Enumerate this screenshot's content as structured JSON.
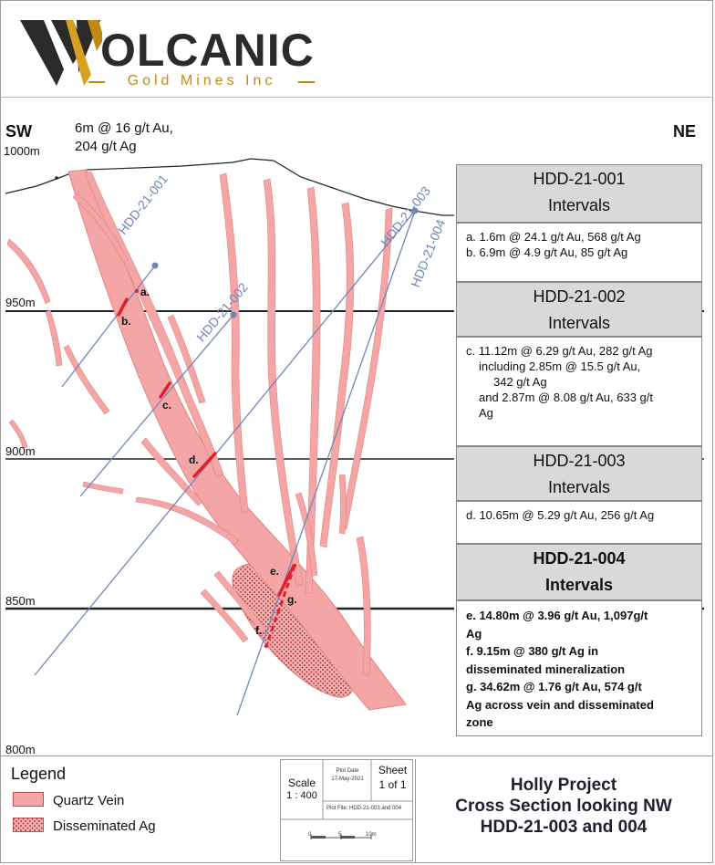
{
  "logo": {
    "wordmark": "OLCANIC",
    "subtitle": "Gold Mines Inc"
  },
  "section": {
    "left_direction": "SW",
    "right_direction": "NE",
    "top_note_line1": "6m @ 16 g/t Au,",
    "top_note_line2": "204 g/t Ag",
    "elevations": [
      "1000m",
      "950m",
      "900m",
      "850m",
      "800m"
    ],
    "holes": [
      "HDD-21-001",
      "HDD-21-002",
      "HDD-21-003",
      "HDD-21-004"
    ],
    "intercept_labels": [
      "a.",
      "b.",
      "c.",
      "d.",
      "e.",
      "g.",
      "f."
    ]
  },
  "panels": [
    {
      "title_line1": "HDD-21-001",
      "title_line2": "Intervals",
      "lines": [
        "a.  1.6m @ 24.1 g/t Au, 568 g/t Ag",
        "b.  6.9m @ 4.9 g/t Au, 85 g/t Ag"
      ]
    },
    {
      "title_line1": "HDD-21-002",
      "title_line2": "Intervals",
      "lines": [
        "c.  11.12m @ 6.29 g/t Au, 282 g/t Ag",
        "including 2.85m @ 15.5 g/t Au,",
        "342 g/t Ag",
        "and 2.87m @ 8.08 g/t Au, 633 g/t",
        "Ag"
      ]
    },
    {
      "title_line1": "HDD-21-003",
      "title_line2": "Intervals",
      "lines": [
        "d.  10.65m @ 5.29 g/t Au, 256 g/t Ag"
      ]
    },
    {
      "title_line1": "HDD-21-004",
      "title_line2": "Intervals",
      "lines": [
        "e.  14.80m @ 3.96 g/t Au, 1,097g/t",
        "Ag",
        "f.   9.15m @ 380 g/t Ag in",
        "disseminated mineralization",
        "g.   34.62m @ 1.76 g/t Au, 574 g/t",
        "Ag across vein and disseminated",
        "zone"
      ]
    }
  ],
  "legend": {
    "title": "Legend",
    "items": [
      {
        "label": "Quartz Vein",
        "color": "#f4a6a6"
      },
      {
        "label": "Disseminated Ag",
        "color": "#f4a6a6"
      }
    ]
  },
  "title_block": {
    "scale_label": "Scale",
    "scale_value": "1 : 400",
    "plot_date_label": "Plot Date",
    "plot_date_value": "17-May-2021",
    "sheet_label": "Sheet",
    "sheet_value": "1 of 1",
    "plot_file": "Plot File: HDD-21-003 and 004",
    "scalebar_ticks": [
      "0",
      "5",
      "10m"
    ]
  },
  "project": {
    "line1": "Holly Project",
    "line2": "Cross Section looking NW",
    "line3": "HDD-21-003 and 004"
  },
  "colors": {
    "vein": "#f4a6a6",
    "vein_edge": "#e58080",
    "drill_trace": "#6f86b8",
    "intercept": "#e0202a",
    "logo_gold": "#c38a12"
  }
}
